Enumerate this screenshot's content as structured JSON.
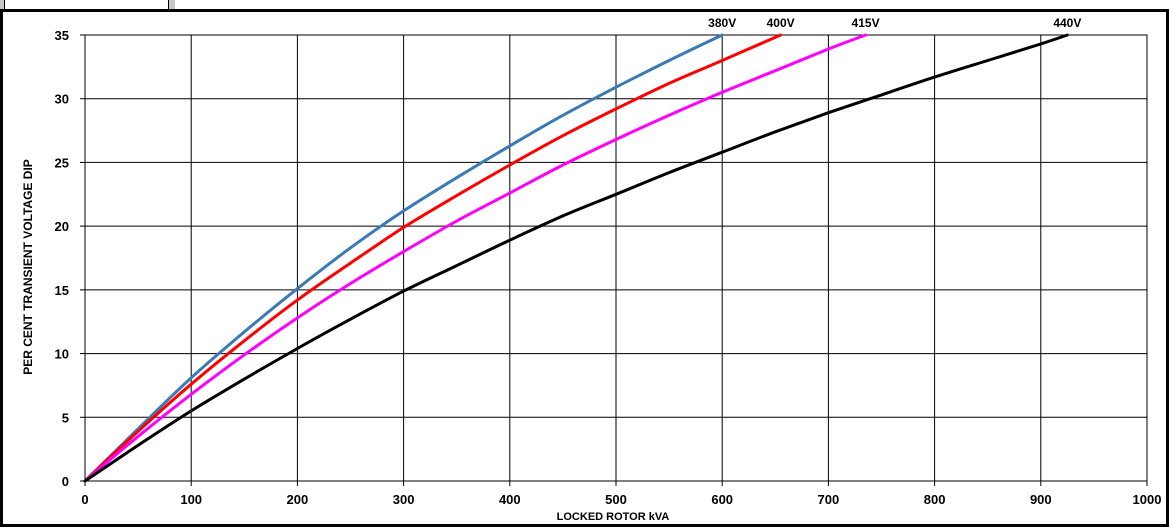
{
  "chart_data": {
    "type": "line",
    "title": "",
    "xlabel": "LOCKED ROTOR kVA",
    "ylabel": "PER CENT TRANSIENT VOLTAGE DIP",
    "xlim": [
      0,
      1000
    ],
    "ylim": [
      0,
      35
    ],
    "x_ticks": [
      "0",
      "100",
      "200",
      "300",
      "400",
      "500",
      "600",
      "700",
      "800",
      "900",
      "1000"
    ],
    "y_ticks": [
      "0",
      "5",
      "10",
      "15",
      "20",
      "25",
      "30",
      "35"
    ],
    "grid": true,
    "series": [
      {
        "name": "380V",
        "color": "#3a7ab5",
        "x": [
          0,
          50,
          100,
          150,
          200,
          250,
          300,
          350,
          400,
          450,
          500,
          550,
          600
        ],
        "y": [
          0,
          4.1,
          8.1,
          11.7,
          15.1,
          18.3,
          21.2,
          23.8,
          26.3,
          28.7,
          30.9,
          33.0,
          35.0
        ]
      },
      {
        "name": "400V",
        "color": "#ff0000",
        "x": [
          0,
          50,
          100,
          150,
          200,
          250,
          300,
          350,
          400,
          450,
          500,
          550,
          600,
          655
        ],
        "y": [
          0,
          3.9,
          7.6,
          11.0,
          14.2,
          17.1,
          19.9,
          22.4,
          24.8,
          27.1,
          29.2,
          31.2,
          33.0,
          35.0
        ]
      },
      {
        "name": "415V",
        "color": "#ff00ff",
        "x": [
          0,
          50,
          100,
          150,
          200,
          250,
          300,
          350,
          400,
          450,
          500,
          550,
          600,
          650,
          700,
          735
        ],
        "y": [
          0,
          3.5,
          6.8,
          9.9,
          12.8,
          15.5,
          18.0,
          20.4,
          22.6,
          24.8,
          26.8,
          28.7,
          30.5,
          32.2,
          33.9,
          35.0
        ]
      },
      {
        "name": "440V",
        "color": "#000000",
        "x": [
          0,
          50,
          100,
          150,
          200,
          250,
          300,
          350,
          400,
          450,
          500,
          550,
          600,
          650,
          700,
          750,
          800,
          850,
          900,
          925
        ],
        "y": [
          0,
          2.8,
          5.5,
          8.0,
          10.4,
          12.7,
          14.9,
          16.9,
          18.9,
          20.8,
          22.5,
          24.2,
          25.8,
          27.4,
          28.9,
          30.3,
          31.7,
          33.0,
          34.3,
          35.0
        ]
      }
    ]
  }
}
